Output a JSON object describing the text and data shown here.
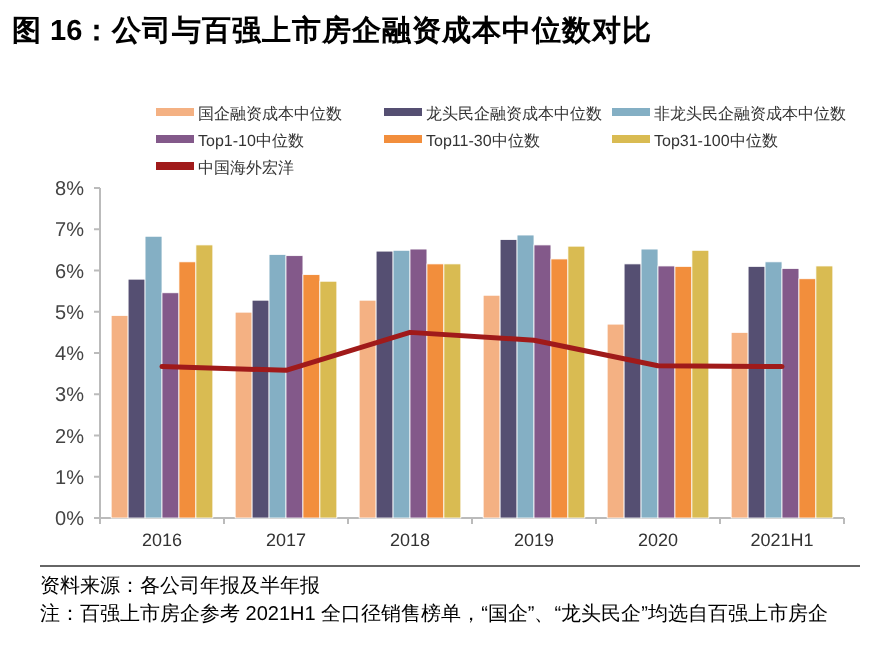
{
  "chart_data": {
    "type": "bar",
    "title": "图 16：公司与百强上市房企融资成本中位数对比",
    "categories": [
      "2016",
      "2017",
      "2018",
      "2019",
      "2020",
      "2021H1"
    ],
    "series": [
      {
        "name": "国企融资成本中位数",
        "color": "#f4b183",
        "values": [
          4.91,
          4.99,
          5.28,
          5.4,
          4.7,
          4.5
        ]
      },
      {
        "name": "龙头民企融资成本中位数",
        "color": "#554f72",
        "values": [
          5.79,
          5.28,
          6.47,
          6.75,
          6.16,
          6.1
        ]
      },
      {
        "name": "非龙头民企融资成本中位数",
        "color": "#84afc4",
        "values": [
          6.83,
          6.39,
          6.49,
          6.86,
          6.52,
          6.21
        ]
      },
      {
        "name": "Top1-10中位数",
        "color": "#83598a",
        "values": [
          5.46,
          6.36,
          6.52,
          6.62,
          6.11,
          6.05
        ]
      },
      {
        "name": "Top11-30中位数",
        "color": "#f28e3c",
        "values": [
          6.21,
          5.9,
          6.16,
          6.28,
          6.1,
          5.8
        ]
      },
      {
        "name": "Top31-100中位数",
        "color": "#d9bb52",
        "values": [
          6.62,
          5.74,
          6.16,
          6.59,
          6.49,
          6.11
        ]
      },
      {
        "name": "中国海外宏洋",
        "color": "#a01a1a",
        "type": "line",
        "values": [
          3.67,
          3.58,
          4.5,
          4.31,
          3.69,
          3.67
        ]
      }
    ],
    "ylim": [
      0,
      8
    ],
    "yticks": [
      {
        "value": 0,
        "label": "0%"
      },
      {
        "value": 1,
        "label": "1%"
      },
      {
        "value": 2,
        "label": "2%"
      },
      {
        "value": 3,
        "label": "3%"
      },
      {
        "value": 4,
        "label": "4%"
      },
      {
        "value": 5,
        "label": "5%"
      },
      {
        "value": 6,
        "label": "6%"
      },
      {
        "value": 7,
        "label": "7%"
      },
      {
        "value": 8,
        "label": "8%"
      }
    ],
    "grid": false,
    "legend": "top",
    "annotations": [
      "资料来源：各公司年报及半年报",
      "注：百强上市房企参考 2021H1 全口径销售榜单，“国企”、“龙头民企”均选自百强上市房企"
    ]
  }
}
